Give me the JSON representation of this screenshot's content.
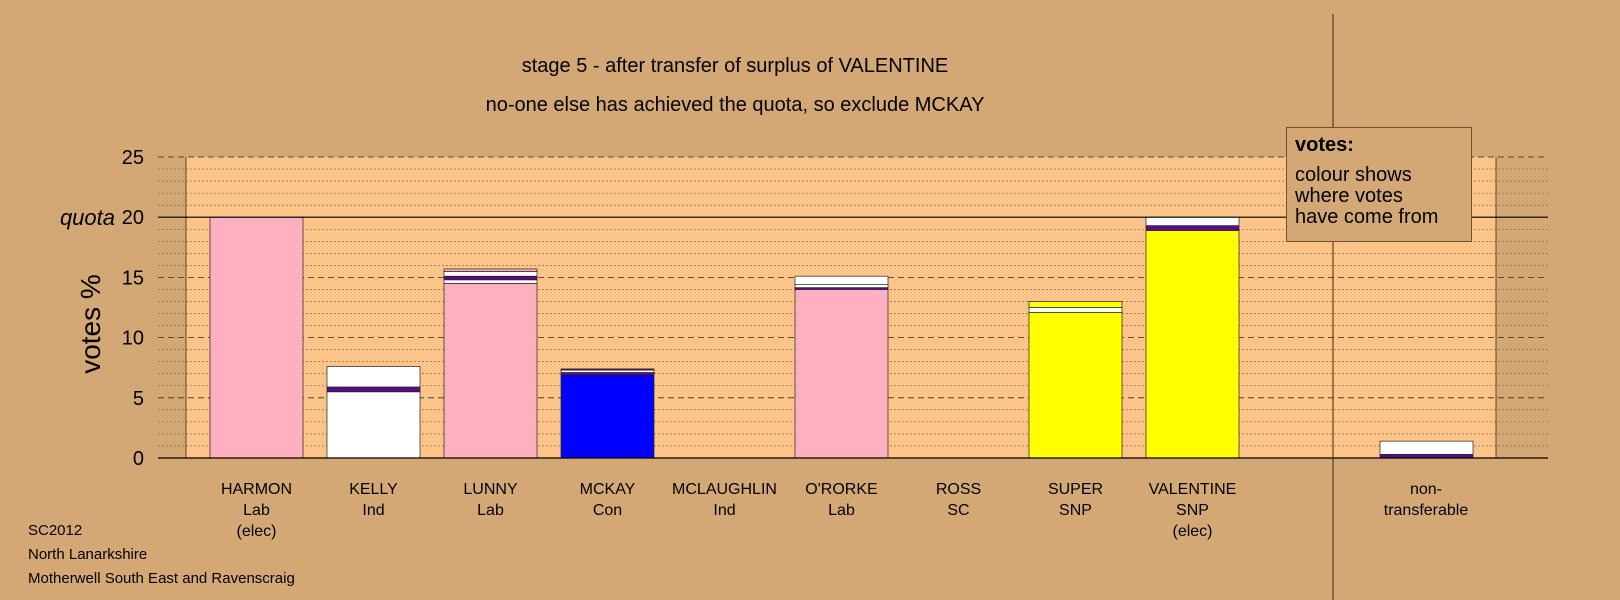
{
  "chart_data": {
    "type": "bar",
    "stacked": true,
    "title": "stage 5 - after transfer of surplus of VALENTINE",
    "subtitle": "no-one else has achieved the quota, so exclude MCKAY",
    "ylabel": "votes %",
    "quota_label": "quota",
    "quota": 20,
    "ylim": [
      0,
      25
    ],
    "yticks": [
      0,
      5,
      10,
      15,
      20,
      25
    ],
    "yticks_labels": [
      "0",
      "5",
      "10",
      "15",
      "20",
      "25"
    ],
    "grid": true,
    "colors": {
      "pink": "#ffb0c0",
      "white": "#ffffff",
      "blue": "#0000ff",
      "yellow": "#ffff00",
      "purple": "#5a0a8a",
      "plot_bg": "#fcc488",
      "page_bg": "#d4a874"
    },
    "candidates": [
      {
        "name": "HARMON",
        "party": "Lab",
        "status": "(elec)",
        "segments": [
          {
            "color": "pink",
            "value": 20
          }
        ]
      },
      {
        "name": "KELLY",
        "party": "Ind",
        "status": "",
        "segments": [
          {
            "color": "white",
            "value": 5.5
          },
          {
            "color": "purple",
            "value": 0.4
          },
          {
            "color": "white",
            "value": 1.7
          }
        ]
      },
      {
        "name": "LUNNY",
        "party": "Lab",
        "status": "",
        "segments": [
          {
            "color": "pink",
            "value": 14.5
          },
          {
            "color": "white",
            "value": 0.3
          },
          {
            "color": "purple",
            "value": 0.3
          },
          {
            "color": "white",
            "value": 0.4
          },
          {
            "color": "pink",
            "value": 0.2
          }
        ]
      },
      {
        "name": "MCKAY",
        "party": "Con",
        "status": "",
        "segments": [
          {
            "color": "blue",
            "value": 6.9
          },
          {
            "color": "purple",
            "value": 0.2
          },
          {
            "color": "white",
            "value": 0.2
          },
          {
            "color": "purple",
            "value": 0.1
          }
        ]
      },
      {
        "name": "MCLAUGHLIN",
        "party": "Ind",
        "status": "",
        "segments": []
      },
      {
        "name": "O'RORKE",
        "party": "Lab",
        "status": "",
        "segments": [
          {
            "color": "pink",
            "value": 14.0
          },
          {
            "color": "purple",
            "value": 0.15
          },
          {
            "color": "white",
            "value": 0.25
          },
          {
            "color": "white",
            "value": 0.7
          }
        ]
      },
      {
        "name": "ROSS",
        "party": "SC",
        "status": "",
        "segments": []
      },
      {
        "name": "SUPER",
        "party": "SNP",
        "status": "",
        "segments": [
          {
            "color": "yellow",
            "value": 12.1
          },
          {
            "color": "white",
            "value": 0.4
          },
          {
            "color": "yellow",
            "value": 0.5
          }
        ]
      },
      {
        "name": "VALENTINE",
        "party": "SNP",
        "status": "(elec)",
        "segments": [
          {
            "color": "yellow",
            "value": 18.9
          },
          {
            "color": "purple",
            "value": 0.4
          },
          {
            "color": "white",
            "value": 0.7
          }
        ]
      }
    ],
    "non_transferable": {
      "label_line1": "non-",
      "label_line2": "transferable",
      "segments": [
        {
          "color": "purple",
          "value": 0.3
        },
        {
          "color": "white",
          "value": 1.1
        }
      ]
    },
    "legend": {
      "title": "votes:",
      "line1": "colour shows",
      "line2": "where votes",
      "line3": "have come from"
    }
  },
  "footer": {
    "line1": "SC2012",
    "line2": "North Lanarkshire",
    "line3": "Motherwell South East and Ravenscraig"
  }
}
